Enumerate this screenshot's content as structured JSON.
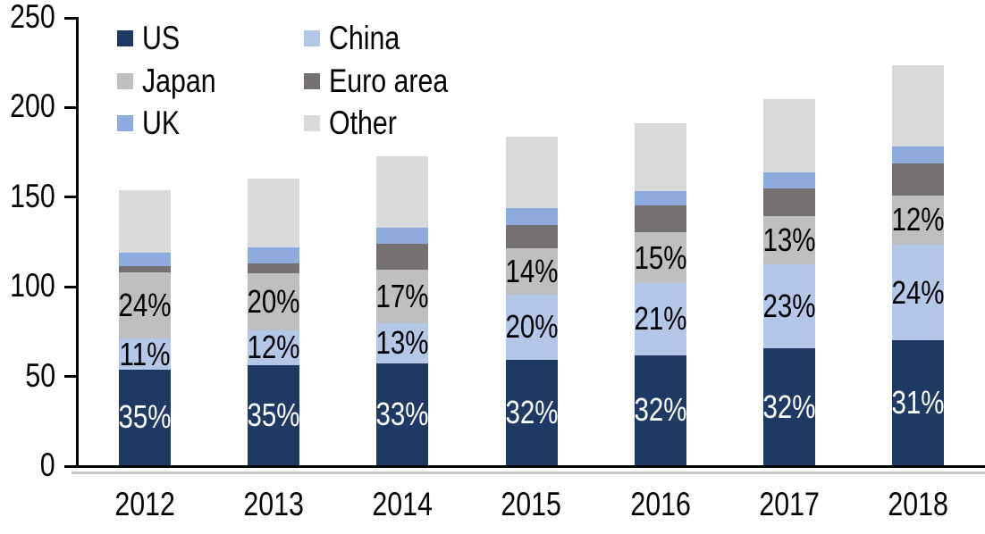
{
  "chart_data": {
    "type": "bar",
    "subtype": "stacked-vertical",
    "title": "",
    "xlabel": "",
    "ylabel": "",
    "categories": [
      "2012",
      "2013",
      "2014",
      "2015",
      "2016",
      "2017",
      "2018"
    ],
    "ylim": [
      0,
      250
    ],
    "yticks": [
      0,
      50,
      100,
      150,
      200,
      250
    ],
    "ytick_labels": [
      "0",
      "50",
      "100",
      "150",
      "200",
      "250"
    ],
    "grid": false,
    "legend": {
      "position": "top-left-inside",
      "columns": 2,
      "order": [
        "US",
        "China",
        "Japan",
        "Euro area",
        "UK",
        "Other"
      ]
    },
    "series": [
      {
        "name": "US",
        "color": "#1F3864",
        "label_color": "#FFFFFF",
        "values": [
          53.5,
          56,
          57,
          59,
          61.5,
          65,
          69.5
        ],
        "labels": [
          "35%",
          "35%",
          "33%",
          "32%",
          "32%",
          "32%",
          "31%"
        ]
      },
      {
        "name": "China",
        "color": "#B4C7E7",
        "label_color": "#000000",
        "values": [
          17,
          19,
          22,
          36,
          40,
          47,
          53.5
        ],
        "labels": [
          "11%",
          "12%",
          "13%",
          "20%",
          "21%",
          "23%",
          "24%"
        ]
      },
      {
        "name": "Japan",
        "color": "#BFBFBF",
        "label_color": "#000000",
        "values": [
          37,
          32,
          30,
          26,
          28.5,
          27,
          27.5
        ],
        "labels": [
          "24%",
          "20%",
          "17%",
          "14%",
          "15%",
          "13%",
          "12%"
        ]
      },
      {
        "name": "Euro area",
        "color": "#767171",
        "label_color": null,
        "values": [
          3.5,
          5.5,
          14.5,
          13,
          15,
          15.5,
          18
        ],
        "labels": null
      },
      {
        "name": "UK",
        "color": "#8FAADC",
        "label_color": null,
        "values": [
          7.5,
          9,
          9,
          9.5,
          8,
          9,
          9.5
        ],
        "labels": null
      },
      {
        "name": "Other",
        "color": "#D9D9D9",
        "label_color": null,
        "values": [
          35,
          38.5,
          40,
          40,
          38,
          40.5,
          45
        ],
        "labels": null
      }
    ],
    "totals_approx": [
      153.5,
      160,
      172.5,
      183.5,
      191,
      204.5,
      223
    ],
    "axis_color": "#000000",
    "text_color": "#000000",
    "background_color": "#FFFFFF"
  }
}
